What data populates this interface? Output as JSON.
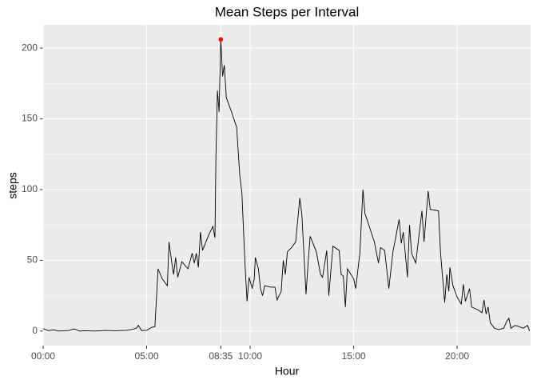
{
  "chart_data": {
    "type": "line",
    "title": "Mean Steps per Interval",
    "x_label": "Hour",
    "y_label": "steps",
    "x": [
      0,
      0.25,
      0.5,
      0.75,
      1,
      1.25,
      1.5,
      1.75,
      2,
      2.5,
      3,
      3.5,
      4,
      4.25,
      4.5,
      4.6,
      4.75,
      5,
      5.25,
      5.4,
      5.55,
      5.75,
      6,
      6.08,
      6.2,
      6.3,
      6.4,
      6.5,
      6.7,
      7,
      7.2,
      7.3,
      7.4,
      7.5,
      7.6,
      7.7,
      8,
      8.2,
      8.3,
      8.35,
      8.42,
      8.5,
      8.583333,
      8.67,
      8.75,
      8.85,
      9.1,
      9.35,
      9.5,
      9.6,
      9.75,
      9.85,
      9.95,
      10.1,
      10.2,
      10.25,
      10.4,
      10.5,
      10.6,
      10.7,
      11,
      11.2,
      11.3,
      11.5,
      11.6,
      11.7,
      11.8,
      12,
      12.2,
      12.4,
      12.5,
      12.7,
      12.8,
      12.9,
      13.2,
      13.4,
      13.5,
      13.7,
      13.8,
      14,
      14.3,
      14.4,
      14.5,
      14.6,
      14.7,
      15,
      15.1,
      15.3,
      15.45,
      15.55,
      15.8,
      16,
      16.2,
      16.3,
      16.5,
      16.7,
      16.9,
      17.2,
      17.3,
      17.4,
      17.6,
      17.7,
      17.8,
      18,
      18.3,
      18.4,
      18.6,
      18.7,
      19.1,
      19.2,
      19.4,
      19.5,
      19.6,
      19.65,
      19.8,
      20,
      20.2,
      20.3,
      20.4,
      20.6,
      20.7,
      21,
      21.2,
      21.3,
      21.4,
      21.5,
      21.6,
      21.8,
      22,
      22.25,
      22.4,
      22.5,
      22.6,
      22.8,
      23,
      23.2,
      23.4,
      23.5
    ],
    "series": [
      {
        "name": "steps",
        "color": "#000000",
        "values": [
          1.7,
          0.3,
          0.8,
          0,
          0.2,
          0.4,
          1.5,
          0,
          0.2,
          0,
          0.4,
          0.2,
          0.5,
          1,
          2,
          4,
          0.3,
          0.5,
          2.7,
          3,
          44,
          37,
          32,
          63,
          50,
          40,
          52,
          38,
          49,
          44,
          55,
          48,
          55,
          45,
          70,
          57,
          68,
          74,
          66,
          125,
          170,
          155,
          206.17,
          180,
          188,
          165,
          155,
          144,
          110,
          98,
          48,
          21,
          38,
          30,
          37,
          52,
          44,
          30,
          25,
          32,
          31,
          31,
          22,
          28,
          50,
          40,
          56,
          59,
          63,
          94,
          82,
          26,
          48,
          67,
          56,
          40,
          38,
          57,
          25,
          60,
          57,
          40,
          39,
          17,
          44,
          37,
          30,
          55,
          100,
          83,
          72,
          63,
          48,
          59,
          57,
          30,
          56,
          79,
          62,
          70,
          38,
          75,
          55,
          48,
          85,
          63,
          99,
          86,
          85,
          55,
          20,
          40,
          28,
          45,
          32,
          24,
          19,
          33,
          21,
          30,
          17,
          15,
          13,
          22,
          12,
          17,
          6,
          2,
          1,
          2,
          7,
          9,
          2,
          4,
          3,
          2,
          4,
          0
        ]
      }
    ],
    "peak": {
      "x": 8.583333,
      "y": 206.17,
      "color": "#ff0000"
    },
    "xlim": [
      0,
      23.55
    ],
    "ylim": [
      -10.3,
      216.5
    ],
    "xticks": [
      {
        "value": 0,
        "label": "00:00"
      },
      {
        "value": 5,
        "label": "05:00"
      },
      {
        "value": 8.583333,
        "label": "08:35"
      },
      {
        "value": 10,
        "label": "10:00"
      },
      {
        "value": 15,
        "label": "15:00"
      },
      {
        "value": 20,
        "label": "20:00"
      }
    ],
    "yticks": [
      0,
      50,
      100,
      150,
      200
    ],
    "grid": true
  }
}
